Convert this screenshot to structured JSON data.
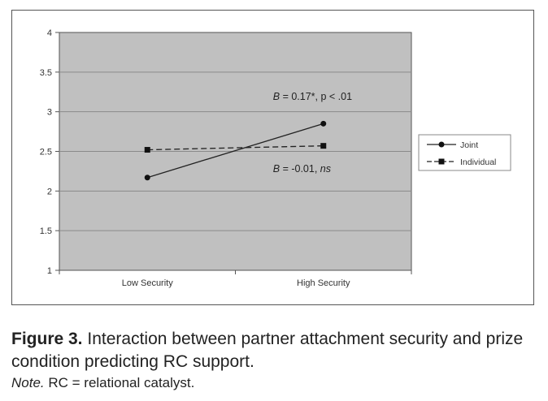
{
  "chart_data": {
    "type": "line",
    "categories": [
      "Low Security",
      "High Security"
    ],
    "series": [
      {
        "name": "Joint",
        "values": [
          2.17,
          2.85
        ],
        "line_style": "solid",
        "marker": "diamond",
        "color": "#222222"
      },
      {
        "name": "Individual",
        "values": [
          2.52,
          2.57
        ],
        "line_style": "dashed",
        "marker": "square",
        "color": "#222222"
      }
    ],
    "ylim": [
      1,
      4
    ],
    "yticks": [
      "1",
      "1.5",
      "2",
      "2.5",
      "3",
      "3.5",
      "4"
    ],
    "grid": true,
    "legend_position": "right",
    "plot_background": "#c0c0c0",
    "annotations": [
      {
        "italic": "B",
        "text": " = 0.17*, p < .01",
        "rest_italic": ""
      },
      {
        "italic": "B",
        "text": " = -0.01, ",
        "rest_italic": "ns"
      }
    ]
  },
  "caption": {
    "label": "Figure 3.",
    "text": "  Interaction between partner attachment security and prize condition predicting RC support."
  },
  "note": {
    "label": "Note.",
    "text": " RC = relational catalyst."
  }
}
